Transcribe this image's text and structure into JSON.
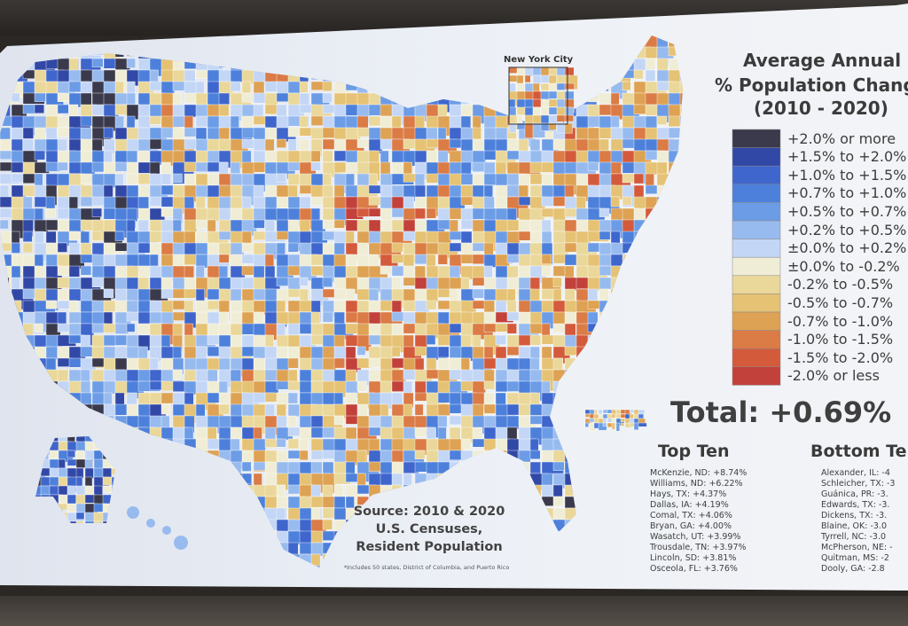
{
  "title_lines": [
    "Average Annual",
    "% Population Change",
    "(2010 - 2020)"
  ],
  "legend": [
    {
      "label": "+2.0% or more",
      "color": "#3a3a4c"
    },
    {
      "label": "+1.5% to +2.0%",
      "color": "#3148a6"
    },
    {
      "label": "+1.0% to +1.5%",
      "color": "#3f66cc"
    },
    {
      "label": "+0.7% to +1.0%",
      "color": "#4d80db"
    },
    {
      "label": "+0.5% to +0.7%",
      "color": "#6c9ce6"
    },
    {
      "label": "+0.2% to +0.5%",
      "color": "#98bbef"
    },
    {
      "label": "±0.0% to +0.2%",
      "color": "#c3d6f6"
    },
    {
      "label": "±0.0% to -0.2%",
      "color": "#f0edd6"
    },
    {
      "label": "-0.2% to -0.5%",
      "color": "#ead79a"
    },
    {
      "label": "-0.5% to -0.7%",
      "color": "#e5c274"
    },
    {
      "label": "-0.7% to -1.0%",
      "color": "#dea254"
    },
    {
      "label": "-1.0% to -1.5%",
      "color": "#db7b45"
    },
    {
      "label": "-1.5% to -2.0%",
      "color": "#d45a3c"
    },
    {
      "label": "-2.0% or less",
      "color": "#c2413a"
    }
  ],
  "total": {
    "label": "Total:",
    "value": "+0.69%"
  },
  "top_ten": {
    "heading": "Top Ten",
    "items": [
      "McKenzie, ND: +8.74%",
      "Williams, ND: +6.22%",
      "Hays, TX: +4.37%",
      "Dallas, IA: +4.19%",
      "Comal, TX: +4.06%",
      "Bryan, GA: +4.00%",
      "Wasatch, UT: +3.99%",
      "Trousdale, TN: +3.97%",
      "Lincoln, SD: +3.81%",
      "Osceola, FL: +3.76%"
    ]
  },
  "bottom_ten": {
    "heading": "Bottom Ten",
    "items": [
      "Alexander, IL: -4",
      "Schleicher, TX: -3",
      "Guánica, PR: -3.",
      "Edwards, TX: -3.",
      "Dickens, TX: -3.",
      "Blaine, OK: -3.0",
      "Tyrrell, NC: -3.0",
      "McPherson, NE: -",
      "Quitman, MS: -2",
      "Dooly, GA: -2.8"
    ]
  },
  "source_lines": [
    "Source: 2010 & 2020",
    "U.S. Censuses,",
    "Resident Population"
  ],
  "footnote": "*Includes 50 states, District of Columbia, and Puerto Rico",
  "inset_label": "New York City"
}
